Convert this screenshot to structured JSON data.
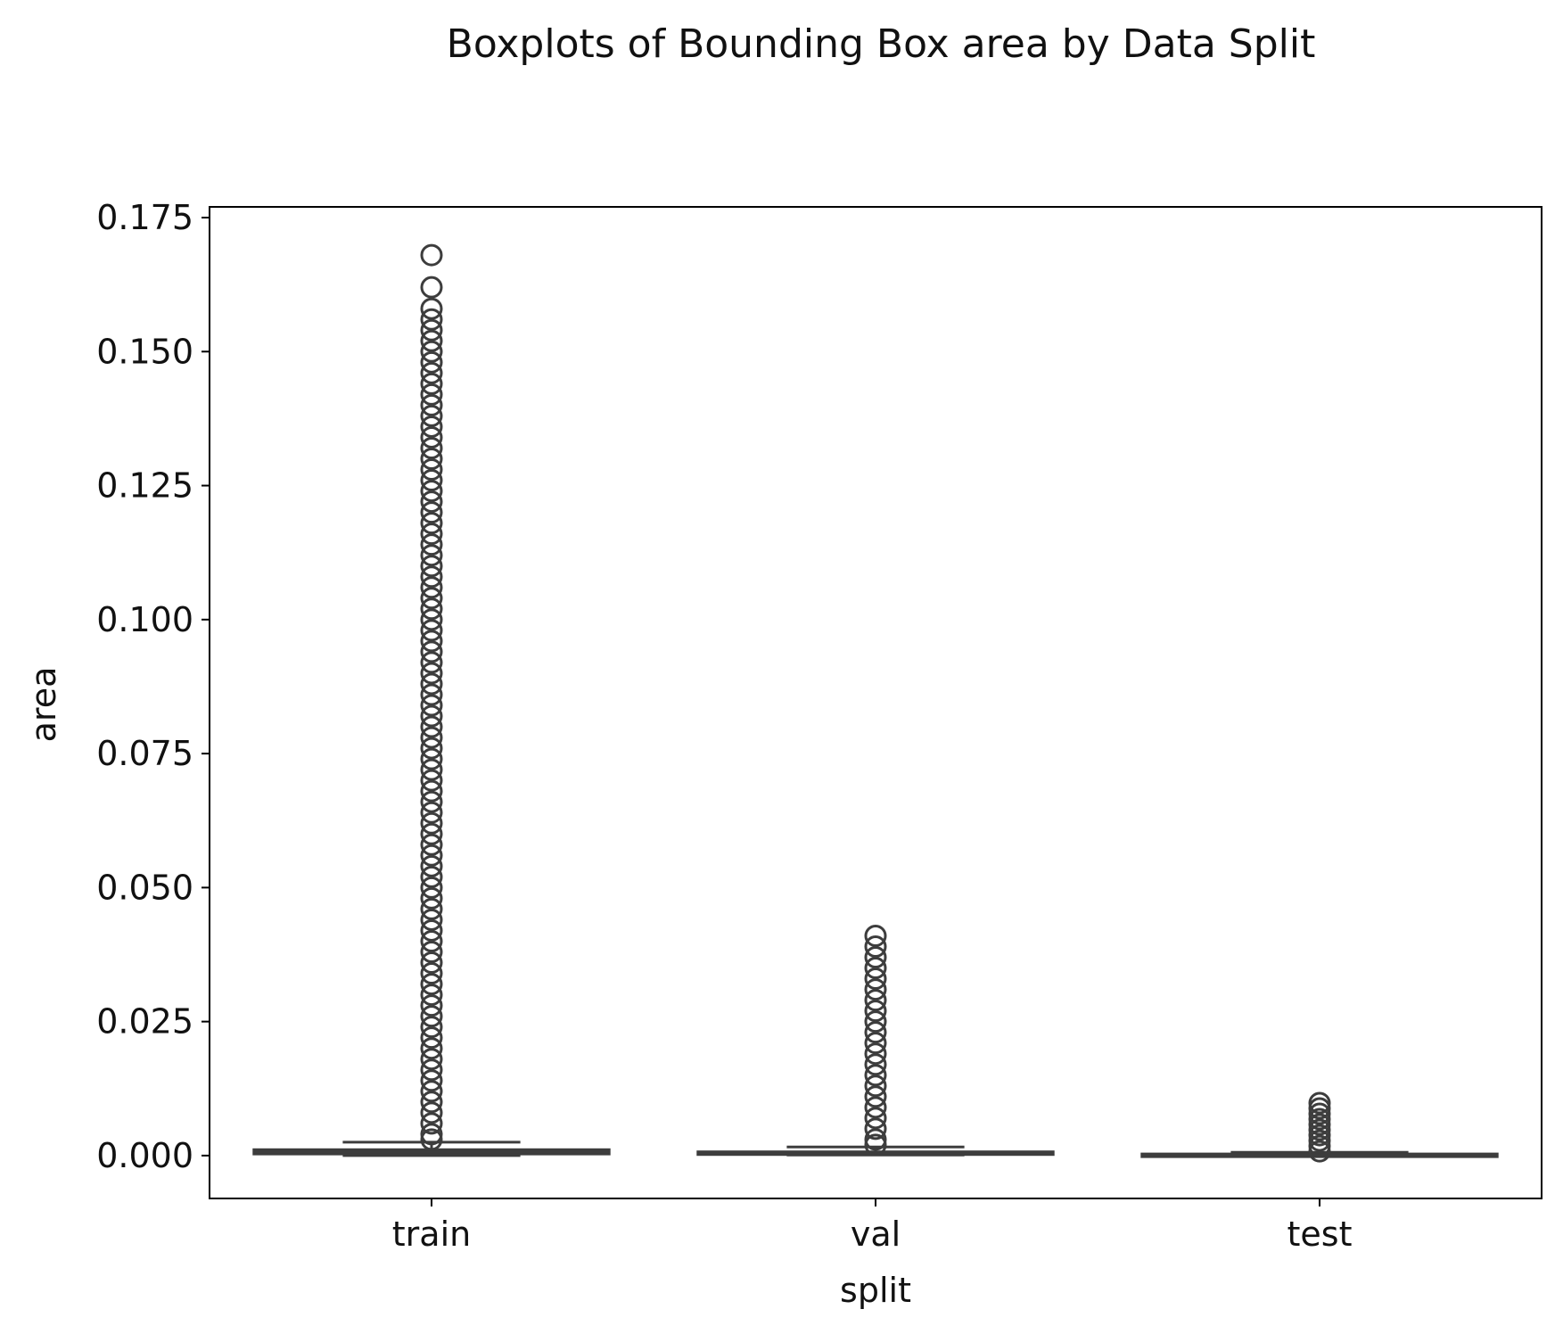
{
  "chart_data": {
    "type": "boxplot",
    "title": "Boxplots of Bounding Box area by Data Split",
    "xlabel": "split",
    "ylabel": "area",
    "categories": [
      "train",
      "val",
      "test"
    ],
    "y_ticks": [
      "0.000",
      "0.025",
      "0.050",
      "0.075",
      "0.100",
      "0.125",
      "0.150",
      "0.175"
    ],
    "y_tick_values": [
      0,
      0.025,
      0.05,
      0.075,
      0.1,
      0.125,
      0.15,
      0.175
    ],
    "ylim": [
      -0.008,
      0.177
    ],
    "grid": false,
    "colors": {
      "box_stroke": "#3d3d3d",
      "box_fill": "#3d3d3d",
      "axes": "#000000"
    },
    "boxes": [
      {
        "name": "train",
        "whisker_low": 0.0,
        "q1": 0.0003,
        "median": 0.0006,
        "q3": 0.0011,
        "whisker_high": 0.0025,
        "outlier_max": 0.168
      },
      {
        "name": "val",
        "whisker_low": 0.0001,
        "q1": 0.0002,
        "median": 0.0004,
        "q3": 0.0007,
        "whisker_high": 0.0016,
        "outlier_max": 0.041
      },
      {
        "name": "test",
        "whisker_low": 0.0,
        "q1": 0.0001,
        "median": 0.0002,
        "q3": 0.0003,
        "whisker_high": 0.0006,
        "outlier_max": 0.0098
      }
    ],
    "outliers": [
      [
        0.168,
        0.162,
        0.158,
        0.156,
        0.154,
        0.152,
        0.15,
        0.148,
        0.146,
        0.144,
        0.142,
        0.14,
        0.138,
        0.136,
        0.134,
        0.132,
        0.13,
        0.128,
        0.126,
        0.124,
        0.122,
        0.12,
        0.118,
        0.116,
        0.114,
        0.112,
        0.11,
        0.108,
        0.106,
        0.104,
        0.102,
        0.1,
        0.098,
        0.096,
        0.094,
        0.092,
        0.09,
        0.088,
        0.086,
        0.084,
        0.082,
        0.08,
        0.078,
        0.076,
        0.074,
        0.072,
        0.07,
        0.068,
        0.066,
        0.064,
        0.062,
        0.06,
        0.058,
        0.056,
        0.054,
        0.052,
        0.05,
        0.048,
        0.046,
        0.044,
        0.042,
        0.04,
        0.038,
        0.036,
        0.034,
        0.032,
        0.03,
        0.028,
        0.026,
        0.024,
        0.022,
        0.02,
        0.018,
        0.016,
        0.014,
        0.012,
        0.01,
        0.008,
        0.006,
        0.004,
        0.003
      ],
      [
        0.041,
        0.039,
        0.037,
        0.035,
        0.033,
        0.031,
        0.029,
        0.027,
        0.025,
        0.023,
        0.021,
        0.019,
        0.017,
        0.015,
        0.013,
        0.011,
        0.009,
        0.007,
        0.005,
        0.003,
        0.002
      ],
      [
        0.0098,
        0.0088,
        0.0078,
        0.0068,
        0.0058,
        0.0048,
        0.0038,
        0.0028,
        0.0018,
        0.0008
      ]
    ]
  }
}
